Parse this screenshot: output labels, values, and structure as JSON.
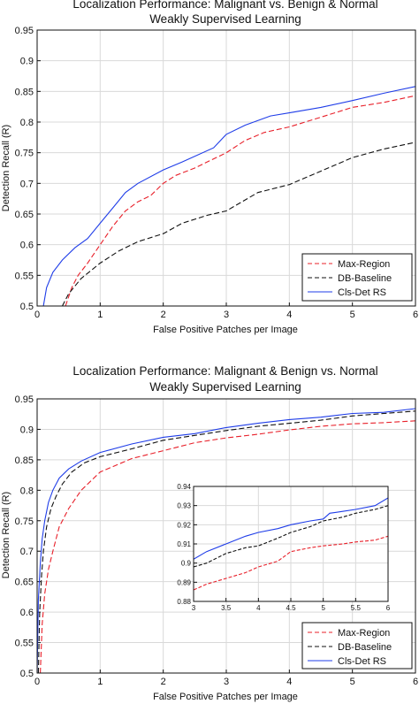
{
  "chart_data": [
    {
      "type": "line",
      "title": "Localization Performance: Malignant vs. Benign & Normal",
      "subtitle": "Weakly Supervised Learning",
      "xlabel": "False Positive Patches per Image",
      "ylabel": "Detection Recall (R)",
      "xlim": [
        0,
        6
      ],
      "ylim": [
        0.5,
        0.95
      ],
      "xticks": [
        "0",
        "1",
        "2",
        "3",
        "4",
        "5",
        "6"
      ],
      "yticks": [
        "0.5",
        "0.55",
        "0.6",
        "0.65",
        "0.7",
        "0.75",
        "0.8",
        "0.85",
        "0.9",
        "0.95"
      ],
      "grid": true,
      "legend_position": "bottom-right",
      "series": [
        {
          "name": "Max-Region",
          "color": "#e8202a",
          "dash": "dashed",
          "x": [
            0.45,
            0.55,
            0.65,
            0.8,
            1.0,
            1.2,
            1.4,
            1.6,
            1.8,
            2.0,
            2.2,
            2.5,
            2.8,
            3.0,
            3.3,
            3.6,
            4.0,
            4.5,
            5.0,
            5.5,
            6.0
          ],
          "y": [
            0.5,
            0.53,
            0.55,
            0.57,
            0.6,
            0.63,
            0.655,
            0.67,
            0.68,
            0.7,
            0.713,
            0.725,
            0.74,
            0.75,
            0.77,
            0.783,
            0.792,
            0.808,
            0.824,
            0.832,
            0.843
          ]
        },
        {
          "name": "DB-Baseline",
          "color": "#111111",
          "dash": "dashed",
          "x": [
            0.4,
            0.5,
            0.7,
            1.0,
            1.3,
            1.6,
            2.0,
            2.3,
            2.7,
            3.0,
            3.5,
            4.0,
            4.5,
            5.0,
            5.5,
            6.0
          ],
          "y": [
            0.5,
            0.52,
            0.545,
            0.57,
            0.59,
            0.605,
            0.618,
            0.635,
            0.648,
            0.655,
            0.685,
            0.698,
            0.72,
            0.742,
            0.756,
            0.767
          ]
        },
        {
          "name": "Cls-Det RS",
          "color": "#1f3de8",
          "dash": "solid",
          "x": [
            0.1,
            0.15,
            0.25,
            0.4,
            0.6,
            0.8,
            1.0,
            1.2,
            1.4,
            1.6,
            2.0,
            2.3,
            2.8,
            3.0,
            3.3,
            3.7,
            4.0,
            4.5,
            5.0,
            5.5,
            6.0
          ],
          "y": [
            0.5,
            0.53,
            0.555,
            0.575,
            0.595,
            0.61,
            0.635,
            0.66,
            0.685,
            0.7,
            0.722,
            0.735,
            0.758,
            0.78,
            0.795,
            0.81,
            0.815,
            0.824,
            0.835,
            0.847,
            0.858
          ]
        }
      ]
    },
    {
      "type": "line",
      "title": "Localization Performance: Malignant & Benign vs. Normal",
      "subtitle": "Weakly Supervised Learning",
      "xlabel": "False Positive Patches per Image",
      "ylabel": "Detection Recall (R)",
      "xlim": [
        0,
        6
      ],
      "ylim": [
        0.5,
        0.95
      ],
      "xticks": [
        "0",
        "1",
        "2",
        "3",
        "4",
        "5",
        "6"
      ],
      "yticks": [
        "0.5",
        "0.55",
        "0.6",
        "0.65",
        "0.7",
        "0.75",
        "0.8",
        "0.85",
        "0.9",
        "0.95"
      ],
      "grid": true,
      "legend_position": "bottom-right",
      "series": [
        {
          "name": "Max-Region",
          "color": "#e8202a",
          "dash": "dashed",
          "x": [
            0.05,
            0.08,
            0.12,
            0.18,
            0.25,
            0.35,
            0.5,
            0.7,
            1.0,
            1.5,
            2.0,
            2.5,
            3.0,
            3.5,
            4.0,
            4.5,
            5.0,
            5.5,
            6.0
          ],
          "y": [
            0.5,
            0.58,
            0.63,
            0.67,
            0.7,
            0.74,
            0.77,
            0.8,
            0.83,
            0.852,
            0.865,
            0.878,
            0.886,
            0.892,
            0.899,
            0.905,
            0.909,
            0.911,
            0.914
          ]
        },
        {
          "name": "DB-Baseline",
          "color": "#111111",
          "dash": "dashed",
          "x": [
            0.02,
            0.04,
            0.07,
            0.1,
            0.15,
            0.22,
            0.3,
            0.4,
            0.55,
            0.75,
            1.0,
            1.5,
            2.0,
            2.5,
            3.0,
            3.5,
            4.0,
            4.5,
            5.0,
            5.5,
            6.0
          ],
          "y": [
            0.5,
            0.6,
            0.66,
            0.7,
            0.74,
            0.77,
            0.79,
            0.81,
            0.83,
            0.845,
            0.855,
            0.868,
            0.882,
            0.89,
            0.898,
            0.905,
            0.91,
            0.915,
            0.922,
            0.926,
            0.93
          ]
        },
        {
          "name": "Cls-Det RS",
          "color": "#1f3de8",
          "dash": "solid",
          "x": [
            0.0,
            0.02,
            0.05,
            0.08,
            0.12,
            0.18,
            0.25,
            0.35,
            0.5,
            0.7,
            1.0,
            1.5,
            2.0,
            2.5,
            3.0,
            3.5,
            4.0,
            4.5,
            5.0,
            5.5,
            6.0
          ],
          "y": [
            0.5,
            0.62,
            0.68,
            0.72,
            0.75,
            0.78,
            0.8,
            0.82,
            0.835,
            0.848,
            0.862,
            0.876,
            0.887,
            0.893,
            0.903,
            0.91,
            0.916,
            0.92,
            0.926,
            0.928,
            0.934
          ]
        }
      ]
    },
    {
      "type": "line",
      "title": "",
      "xlim": [
        3,
        6
      ],
      "ylim": [
        0.88,
        0.94
      ],
      "xticks": [
        "3",
        "3.5",
        "4",
        "4.5",
        "5",
        "5.5",
        "6"
      ],
      "yticks": [
        "0.88",
        "0.89",
        "0.9",
        "0.91",
        "0.92",
        "0.93",
        "0.94"
      ],
      "grid": true,
      "series": [
        {
          "name": "Max-Region",
          "color": "#e8202a",
          "dash": "dashed",
          "x": [
            3.0,
            3.2,
            3.5,
            3.8,
            4.0,
            4.3,
            4.5,
            4.8,
            5.0,
            5.3,
            5.5,
            5.8,
            6.0
          ],
          "y": [
            0.886,
            0.889,
            0.892,
            0.895,
            0.898,
            0.901,
            0.906,
            0.908,
            0.909,
            0.91,
            0.911,
            0.912,
            0.914
          ]
        },
        {
          "name": "DB-Baseline",
          "color": "#111111",
          "dash": "dashed",
          "x": [
            3.0,
            3.2,
            3.5,
            3.8,
            4.0,
            4.3,
            4.5,
            4.8,
            5.0,
            5.3,
            5.5,
            5.8,
            6.0
          ],
          "y": [
            0.898,
            0.9,
            0.905,
            0.908,
            0.909,
            0.913,
            0.916,
            0.919,
            0.922,
            0.924,
            0.926,
            0.928,
            0.93
          ]
        },
        {
          "name": "Cls-Det RS",
          "color": "#1f3de8",
          "dash": "solid",
          "x": [
            3.0,
            3.2,
            3.5,
            3.8,
            4.0,
            4.3,
            4.5,
            4.8,
            5.0,
            5.1,
            5.3,
            5.5,
            5.8,
            6.0
          ],
          "y": [
            0.902,
            0.906,
            0.91,
            0.914,
            0.916,
            0.918,
            0.92,
            0.922,
            0.923,
            0.926,
            0.927,
            0.928,
            0.93,
            0.934
          ]
        }
      ]
    }
  ]
}
